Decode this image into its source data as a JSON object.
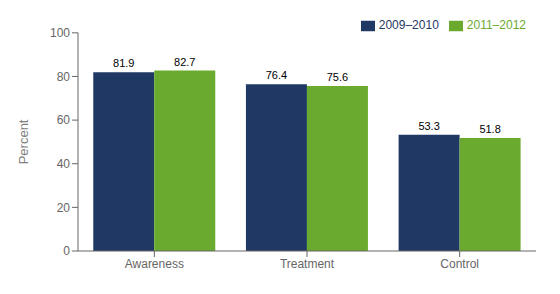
{
  "chart_data": {
    "type": "bar",
    "categories": [
      "Awareness",
      "Treatment",
      "Control"
    ],
    "series": [
      {
        "name": "2009–2010",
        "color": "#1f3864",
        "values": [
          81.9,
          76.4,
          53.3
        ]
      },
      {
        "name": "2011–2012",
        "color": "#6aaa2e",
        "values": [
          82.7,
          75.6,
          51.8
        ]
      }
    ],
    "ylabel": "Percent",
    "ylim": [
      0,
      100
    ],
    "yticks": [
      0,
      20,
      40,
      60,
      80,
      100
    ],
    "grid": false,
    "legend": "upper right",
    "data_labels": true
  }
}
